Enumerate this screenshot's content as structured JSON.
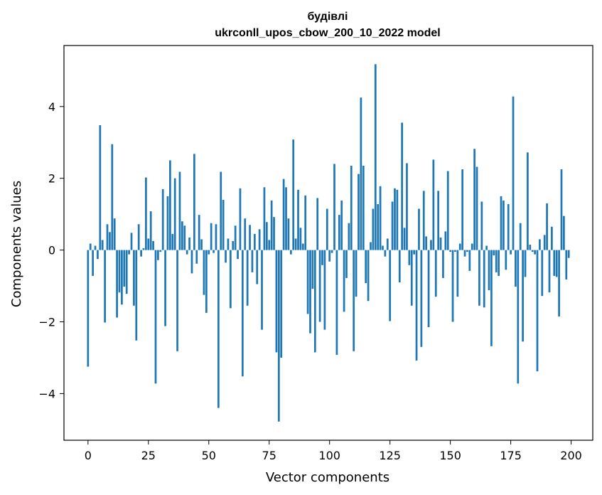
{
  "chart_data": {
    "type": "bar",
    "title_line1": "будівлі",
    "title_line2": "ukrconll_upos_cbow_200_10_2022 model",
    "xlabel": "Vector components",
    "ylabel": "Components values",
    "xlim": [
      -9.95,
      208.95
    ],
    "ylim": [
      -5.3,
      5.7
    ],
    "xticks": [
      0,
      25,
      50,
      75,
      100,
      125,
      150,
      175,
      200
    ],
    "yticks": [
      -4,
      -2,
      0,
      2,
      4
    ],
    "ytick_labels": [
      "−4",
      "−2",
      "0",
      "2",
      "4"
    ],
    "grid": false,
    "bar_color": "#1f77b4",
    "x": [
      0,
      1,
      2,
      3,
      4,
      5,
      6,
      7,
      8,
      9,
      10,
      11,
      12,
      13,
      14,
      15,
      16,
      17,
      18,
      19,
      20,
      21,
      22,
      23,
      24,
      25,
      26,
      27,
      28,
      29,
      30,
      31,
      32,
      33,
      34,
      35,
      36,
      37,
      38,
      39,
      40,
      41,
      42,
      43,
      44,
      45,
      46,
      47,
      48,
      49,
      50,
      51,
      52,
      53,
      54,
      55,
      56,
      57,
      58,
      59,
      60,
      61,
      62,
      63,
      64,
      65,
      66,
      67,
      68,
      69,
      70,
      71,
      72,
      73,
      74,
      75,
      76,
      77,
      78,
      79,
      80,
      81,
      82,
      83,
      84,
      85,
      86,
      87,
      88,
      89,
      90,
      91,
      92,
      93,
      94,
      95,
      96,
      97,
      98,
      99,
      100,
      101,
      102,
      103,
      104,
      105,
      106,
      107,
      108,
      109,
      110,
      111,
      112,
      113,
      114,
      115,
      116,
      117,
      118,
      119,
      120,
      121,
      122,
      123,
      124,
      125,
      126,
      127,
      128,
      129,
      130,
      131,
      132,
      133,
      134,
      135,
      136,
      137,
      138,
      139,
      140,
      141,
      142,
      143,
      144,
      145,
      146,
      147,
      148,
      149,
      150,
      151,
      152,
      153,
      154,
      155,
      156,
      157,
      158,
      159,
      160,
      161,
      162,
      163,
      164,
      165,
      166,
      167,
      168,
      169,
      170,
      171,
      172,
      173,
      174,
      175,
      176,
      177,
      178,
      179,
      180,
      181,
      182,
      183,
      184,
      185,
      186,
      187,
      188,
      189,
      190,
      191,
      192,
      193,
      194,
      195,
      196,
      197,
      198,
      199
    ],
    "values": [
      -3.25,
      0.18,
      -0.72,
      0.12,
      -0.25,
      3.48,
      0.28,
      -2.02,
      0.72,
      0.5,
      2.95,
      0.88,
      -1.88,
      -1.18,
      -1.52,
      -1.02,
      -1.22,
      -0.12,
      0.48,
      -1.55,
      -2.52,
      0.72,
      -0.18,
      0.05,
      2.02,
      0.32,
      1.08,
      0.25,
      -3.72,
      -0.28,
      -0.05,
      1.7,
      -2.12,
      1.5,
      2.5,
      0.45,
      2.0,
      -2.82,
      2.18,
      0.8,
      0.68,
      -0.12,
      0.35,
      -0.65,
      2.68,
      -0.38,
      0.98,
      0.3,
      -1.25,
      -1.75,
      -0.12,
      0.75,
      -0.08,
      0.72,
      -4.4,
      2.18,
      1.4,
      -0.35,
      0.32,
      -1.62,
      0.25,
      0.68,
      -0.25,
      1.72,
      -3.52,
      0.88,
      -1.55,
      0.7,
      -0.62,
      0.45,
      -0.95,
      0.58,
      -2.22,
      1.75,
      0.78,
      0.28,
      1.38,
      0.92,
      -2.85,
      -4.78,
      -3.0,
      1.98,
      1.75,
      0.88,
      -0.12,
      3.08,
      0.32,
      1.68,
      0.62,
      0.18,
      1.52,
      -1.78,
      -2.32,
      -1.08,
      -2.85,
      1.45,
      -2.0,
      -0.42,
      -2.22,
      1.15,
      -0.32,
      -0.08,
      2.4,
      -2.92,
      0.98,
      1.38,
      -1.72,
      -0.78,
      0.75,
      2.35,
      -2.82,
      -1.3,
      2.12,
      4.25,
      2.35,
      -0.92,
      -1.42,
      0.22,
      1.15,
      5.18,
      1.28,
      1.78,
      0.12,
      -0.18,
      0.32,
      -1.98,
      1.35,
      1.72,
      1.68,
      -0.9,
      3.55,
      0.62,
      2.42,
      -0.42,
      -1.55,
      -0.12,
      -3.08,
      1.15,
      -2.7,
      1.65,
      0.38,
      -2.15,
      0.28,
      2.52,
      -1.3,
      1.65,
      0.35,
      -0.78,
      0.52,
      2.2,
      -0.05,
      -2.0,
      -0.05,
      -1.3,
      0.18,
      2.25,
      -0.18,
      -0.05,
      -0.58,
      0.18,
      2.82,
      2.32,
      -1.55,
      1.35,
      -1.6,
      0.12,
      -1.12,
      -2.68,
      -0.15,
      -0.62,
      -0.72,
      1.5,
      1.38,
      -0.55,
      1.28,
      -0.12,
      4.28,
      -1.02,
      -3.72,
      0.75,
      -2.55,
      -0.75,
      2.72,
      0.15,
      -0.05,
      -0.12,
      -3.38,
      0.3,
      -1.28,
      0.42,
      1.3,
      -1.18,
      0.65,
      -0.72,
      -0.75,
      -1.85,
      2.25,
      0.95,
      -0.82,
      -0.22
    ]
  }
}
